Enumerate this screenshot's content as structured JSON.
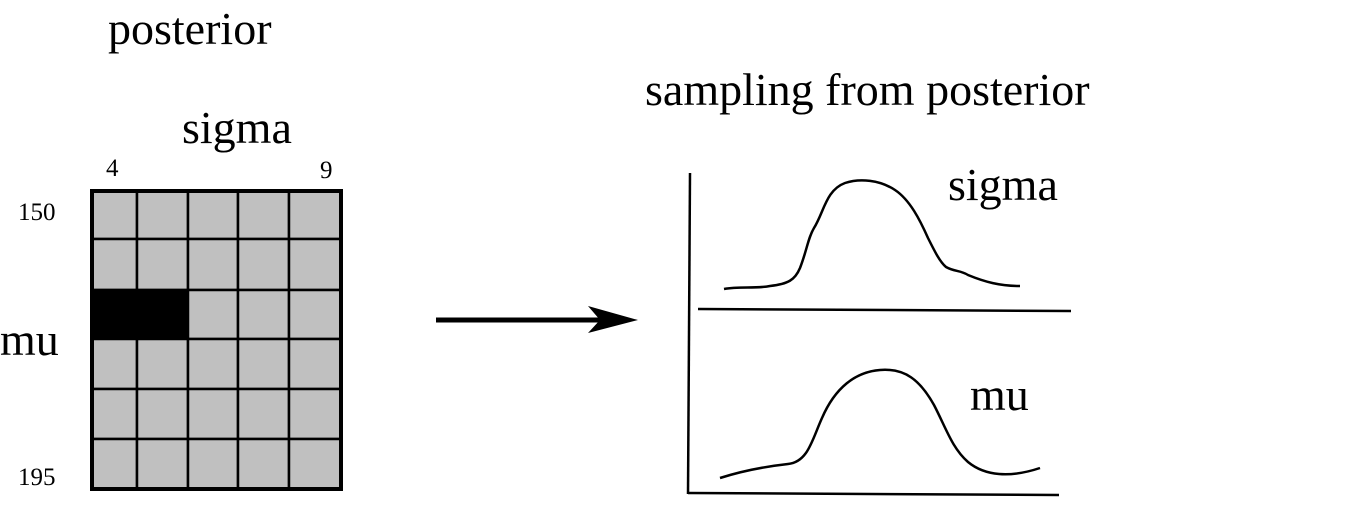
{
  "posterior": {
    "title": "posterior",
    "column_axis_label": "sigma",
    "row_axis_label": "mu",
    "col_tick_start": "4",
    "col_tick_end": "9",
    "row_tick_start": "150",
    "row_tick_end": "195",
    "rows": 6,
    "cols": 5,
    "highlighted_cells": [
      [
        2,
        0
      ],
      [
        2,
        1
      ]
    ],
    "cell_color": "#c0c0c0",
    "highlight_color": "#000000"
  },
  "sampling": {
    "title": "sampling from posterior",
    "top_curve_label": "sigma",
    "bottom_curve_label": "mu"
  }
}
